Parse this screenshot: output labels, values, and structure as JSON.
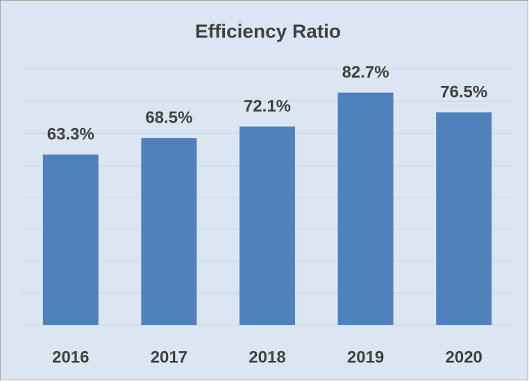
{
  "chart_data": {
    "type": "bar",
    "title": "Efficiency Ratio",
    "categories": [
      "2016",
      "2017",
      "2018",
      "2019",
      "2020"
    ],
    "values": [
      63.3,
      68.5,
      72.1,
      82.7,
      76.5
    ],
    "value_labels": [
      "63.3%",
      "68.5%",
      "72.1%",
      "82.7%",
      "76.5%"
    ],
    "color": "#4f81bd",
    "ylim": [
      10,
      90
    ],
    "yticks": [
      10,
      20,
      30,
      40,
      50,
      60,
      70,
      80,
      90
    ],
    "grid": true
  }
}
